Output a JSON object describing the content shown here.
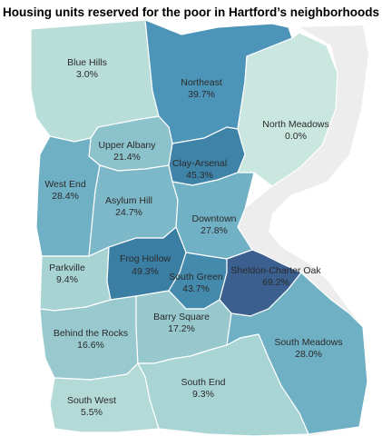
{
  "title": "Housing units reserved for the poor in Hartford’s neighborhoods",
  "neighborhoods": [
    {
      "id": "blue-hills",
      "name": "Blue Hills",
      "pct": "3.0%",
      "color": "#b9ddd9"
    },
    {
      "id": "northeast",
      "name": "Northeast",
      "pct": "39.7%",
      "color": "#4d95b8"
    },
    {
      "id": "north-meadows",
      "name": "North Meadows",
      "pct": "0.0%",
      "color": "#c9e6df"
    },
    {
      "id": "upper-albany",
      "name": "Upper Albany",
      "pct": "21.4%",
      "color": "#8cc2cc"
    },
    {
      "id": "clay-arsenal",
      "name": "Clay-Arsenal",
      "pct": "45.3%",
      "color": "#3f84a8"
    },
    {
      "id": "west-end",
      "name": "West End",
      "pct": "28.4%",
      "color": "#6fb0c4"
    },
    {
      "id": "asylum-hill",
      "name": "Asylum Hill",
      "pct": "24.7%",
      "color": "#7db8c8"
    },
    {
      "id": "downtown",
      "name": "Downtown",
      "pct": "27.8%",
      "color": "#71b1c5"
    },
    {
      "id": "parkville",
      "name": "Parkville",
      "pct": "9.4%",
      "color": "#a8d3d3"
    },
    {
      "id": "frog-hollow",
      "name": "Frog Hollow",
      "pct": "49.3%",
      "color": "#3a7ea3"
    },
    {
      "id": "south-green",
      "name": "South Green",
      "pct": "43.7%",
      "color": "#448aad"
    },
    {
      "id": "sheldon-charter-oak",
      "name": "Sheldon-Charter Oak",
      "pct": "69.2%",
      "color": "#3b5f8f"
    },
    {
      "id": "behind-the-rocks",
      "name": "Behind the Rocks",
      "pct": "16.6%",
      "color": "#98c9cf"
    },
    {
      "id": "barry-square",
      "name": "Barry Square",
      "pct": "17.2%",
      "color": "#96c8ce"
    },
    {
      "id": "south-meadows",
      "name": "South Meadows",
      "pct": "28.0%",
      "color": "#6fb0c4"
    },
    {
      "id": "south-end",
      "name": "South End",
      "pct": "9.3%",
      "color": "#a9d4d4"
    },
    {
      "id": "south-west",
      "name": "South West",
      "pct": "5.5%",
      "color": "#b3dad7"
    }
  ]
}
